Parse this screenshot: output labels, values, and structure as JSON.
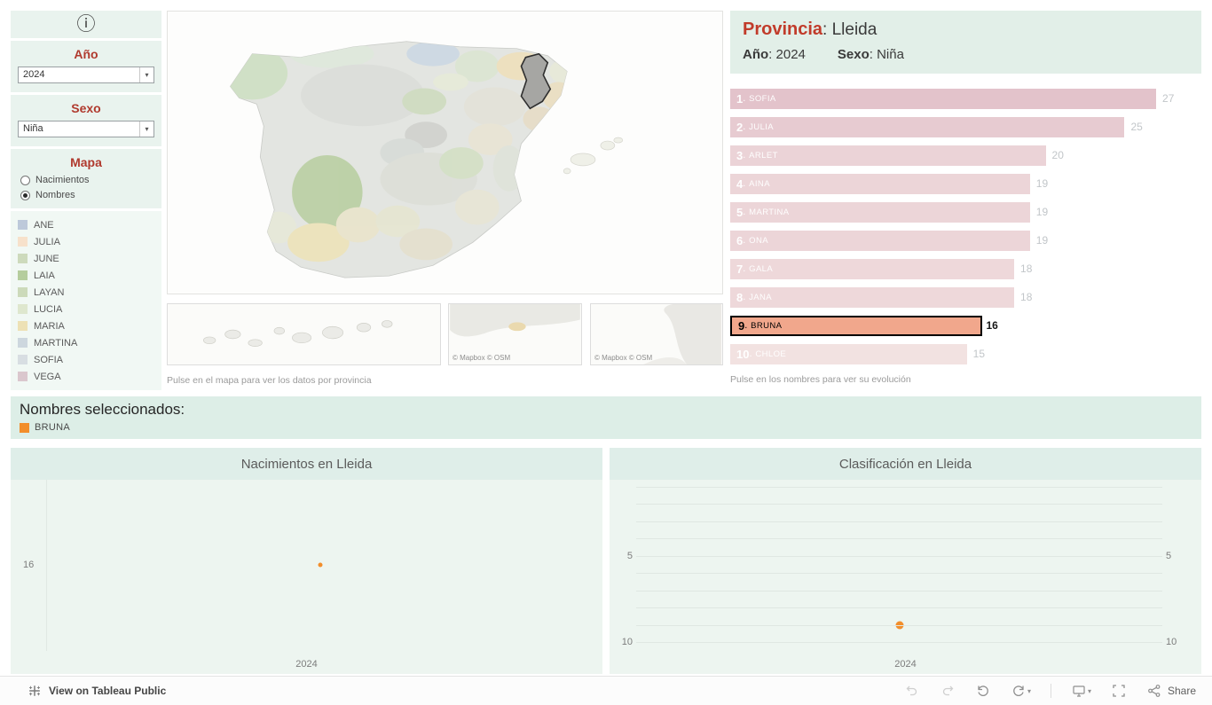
{
  "sidebar": {
    "info_icon": "ⓘ",
    "ano_label": "Año",
    "ano_value": "2024",
    "sexo_label": "Sexo",
    "sexo_value": "Niña",
    "mapa_label": "Mapa",
    "mapa_options": [
      {
        "label": "Nacimientos",
        "selected": false
      },
      {
        "label": "Nombres",
        "selected": true
      }
    ],
    "legend": [
      {
        "label": "ANE",
        "color": "#bdc9da"
      },
      {
        "label": "JULIA",
        "color": "#f7e1cb"
      },
      {
        "label": "JUNE",
        "color": "#cddabc"
      },
      {
        "label": "LAIA",
        "color": "#b5cd9d"
      },
      {
        "label": "LAYAN",
        "color": "#ccdaba"
      },
      {
        "label": "LUCIA",
        "color": "#dee7ce"
      },
      {
        "label": "MARIA",
        "color": "#ede1b5"
      },
      {
        "label": "MARTINA",
        "color": "#cdd7de"
      },
      {
        "label": "SOFIA",
        "color": "#d8dee2"
      },
      {
        "label": "VEGA",
        "color": "#dac7cd"
      }
    ]
  },
  "map": {
    "caption": "Pulse en el mapa para ver los datos por provincia",
    "attribution": "© Mapbox  © OSM",
    "highlighted_province": "Lleida"
  },
  "ranking": {
    "provincia_label": "Provincia",
    "provincia_value": ": Lleida",
    "ano_label": "Año",
    "ano_value": ": 2024",
    "sexo_label": "Sexo",
    "sexo_value": ": Niña",
    "caption": "Pulse en los nombres para ver su evolución",
    "max_value": 27,
    "items": [
      {
        "rank": "1",
        "name": "SOFIA",
        "value": 27,
        "color": "#e3c3cb",
        "selected": false
      },
      {
        "rank": "2",
        "name": "JULIA",
        "value": 25,
        "color": "#e7cbd1",
        "selected": false
      },
      {
        "rank": "3",
        "name": "ARLET",
        "value": 20,
        "color": "#ebd3d7",
        "selected": false
      },
      {
        "rank": "4",
        "name": "AINA",
        "value": 19,
        "color": "#ecd5d8",
        "selected": false
      },
      {
        "rank": "5",
        "name": "MARTINA",
        "value": 19,
        "color": "#ecd5d8",
        "selected": false
      },
      {
        "rank": "6",
        "name": "ONA",
        "value": 19,
        "color": "#ecd5d8",
        "selected": false
      },
      {
        "rank": "7",
        "name": "GALA",
        "value": 18,
        "color": "#eed8da",
        "selected": false
      },
      {
        "rank": "8",
        "name": "JANA",
        "value": 18,
        "color": "#eed8da",
        "selected": false
      },
      {
        "rank": "9",
        "name": "BRUNA",
        "value": 16,
        "color": "#f1a78c",
        "selected": true
      },
      {
        "rank": "10",
        "name": "CHLOE",
        "value": 15,
        "color": "#f2e2e1",
        "selected": false
      }
    ]
  },
  "selected_names": {
    "label": "Nombres seleccionados:",
    "names": [
      {
        "name": "BRUNA",
        "color": "#f28e2b"
      }
    ]
  },
  "chart_data": [
    {
      "type": "scatter",
      "title": "Nacimientos en Lleida",
      "x": [
        2024
      ],
      "values": [
        16
      ],
      "xlabel": "2024",
      "ylabel": "",
      "ytick_labels": [
        "16"
      ],
      "point_color": "#f28e2b",
      "grid": false
    },
    {
      "type": "scatter",
      "title": "Clasificación en Lleida",
      "x": [
        2024
      ],
      "values": [
        9
      ],
      "xlabel": "2024",
      "ylabel": "",
      "yticks": [
        5,
        10
      ],
      "ytick_labels": [
        "5",
        "10"
      ],
      "ylim": [
        1,
        10
      ],
      "y_inverted": true,
      "point_color": "#f28e2b",
      "grid": true
    }
  ],
  "toolbar": {
    "view_label": "View on Tableau Public",
    "share_label": "Share"
  }
}
